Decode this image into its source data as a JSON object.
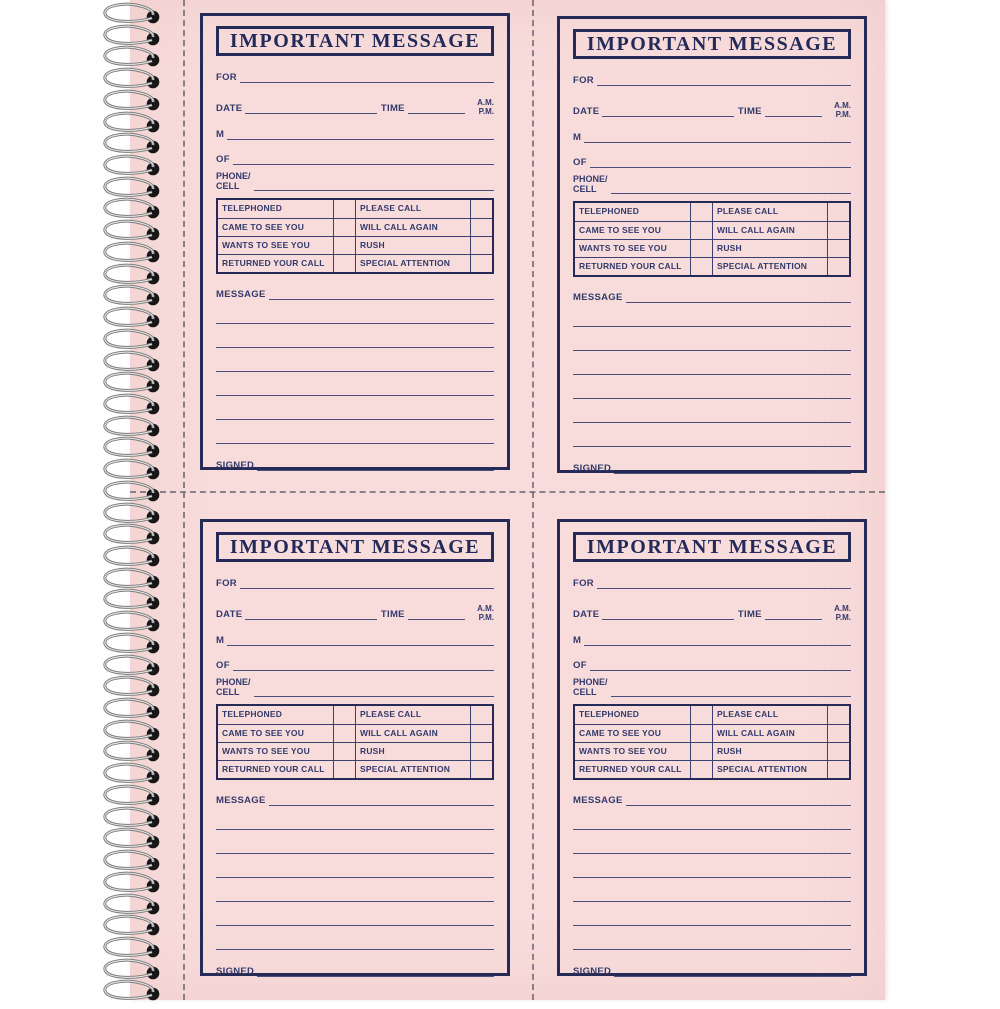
{
  "colors": {
    "background": "#ffffff",
    "paper": "#f7dcdb",
    "ink": "#252b56",
    "label_text": "#333a6b",
    "rule_line": "#4a4f7a",
    "perforation": "#6f6a73",
    "wire": "#7d7d7d",
    "hole": "#161616"
  },
  "binding": {
    "loop_count": 46
  },
  "form": {
    "title": "IMPORTANT MESSAGE",
    "for_label": "FOR",
    "date_label": "DATE",
    "time_label": "TIME",
    "am_label": "A.M.",
    "pm_label": "P.M.",
    "m_label": "M",
    "of_label": "OF",
    "phone_label_line1": "PHONE/",
    "phone_label_line2": "CELL",
    "checkbox_rows": [
      {
        "left": "TELEPHONED",
        "right": "PLEASE CALL"
      },
      {
        "left": "CAME TO SEE YOU",
        "right": "WILL CALL AGAIN"
      },
      {
        "left": "WANTS TO SEE YOU",
        "right": "RUSH"
      },
      {
        "left": "RETURNED YOUR CALL",
        "right": "SPECIAL ATTENTION"
      }
    ],
    "message_label": "MESSAGE",
    "message_line_count": 6,
    "signed_label": "SIGNED"
  },
  "layout": {
    "forms_per_page": 4,
    "form_positions": [
      "top-left",
      "top-right",
      "bottom-left",
      "bottom-right"
    ]
  }
}
